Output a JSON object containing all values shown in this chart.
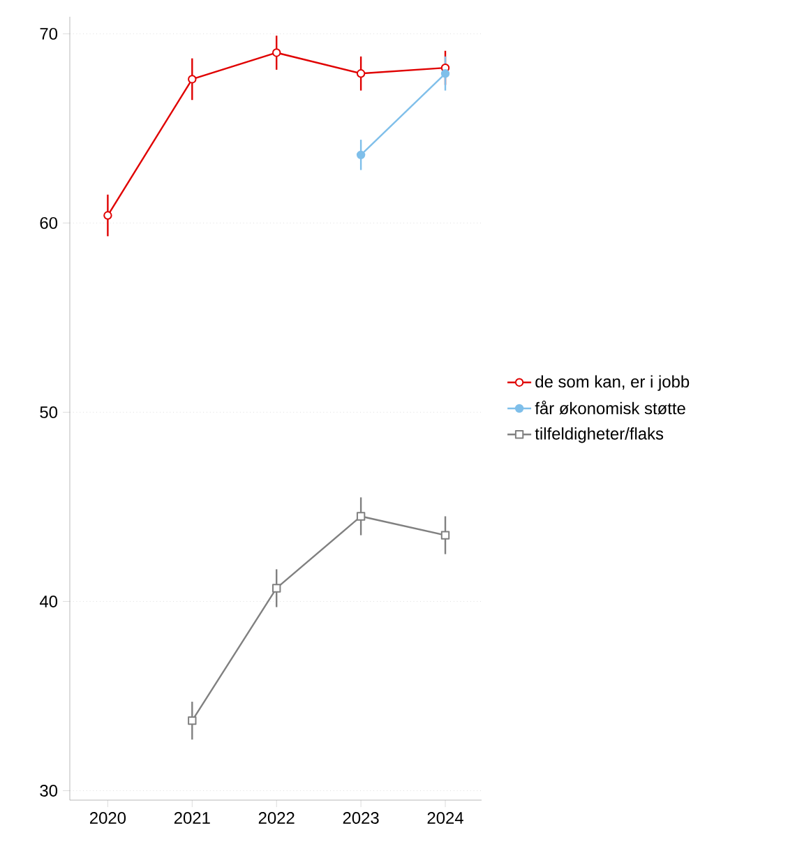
{
  "chart_data": {
    "type": "line",
    "x": [
      2020,
      2021,
      2022,
      2023,
      2024
    ],
    "series": [
      {
        "name": "de som kan, er i jobb",
        "color": "#e00000",
        "marker": "circle",
        "values": [
          60.4,
          67.6,
          69.0,
          67.9,
          68.2
        ],
        "errors": [
          1.1,
          1.1,
          0.9,
          0.9,
          0.9
        ]
      },
      {
        "name": "får økonomisk støtte",
        "color": "#7fbfea",
        "marker": "circle",
        "values": [
          null,
          null,
          null,
          63.6,
          67.9
        ],
        "errors": [
          null,
          null,
          null,
          0.8,
          0.9
        ]
      },
      {
        "name": "tilfeldigheter/flaks",
        "color": "#808080",
        "marker": "square",
        "values": [
          null,
          33.7,
          40.7,
          44.5,
          43.5
        ],
        "errors": [
          null,
          1.0,
          1.0,
          1.0,
          1.0
        ]
      }
    ],
    "xlim": [
      2019.55,
      2024.43
    ],
    "ylim": [
      29.5,
      70.9
    ],
    "xticks": [
      2020,
      2021,
      2022,
      2023,
      2024
    ],
    "yticks": [
      30,
      40,
      50,
      60,
      70
    ],
    "grid": "y",
    "legend": "right",
    "line_style": "solid"
  }
}
